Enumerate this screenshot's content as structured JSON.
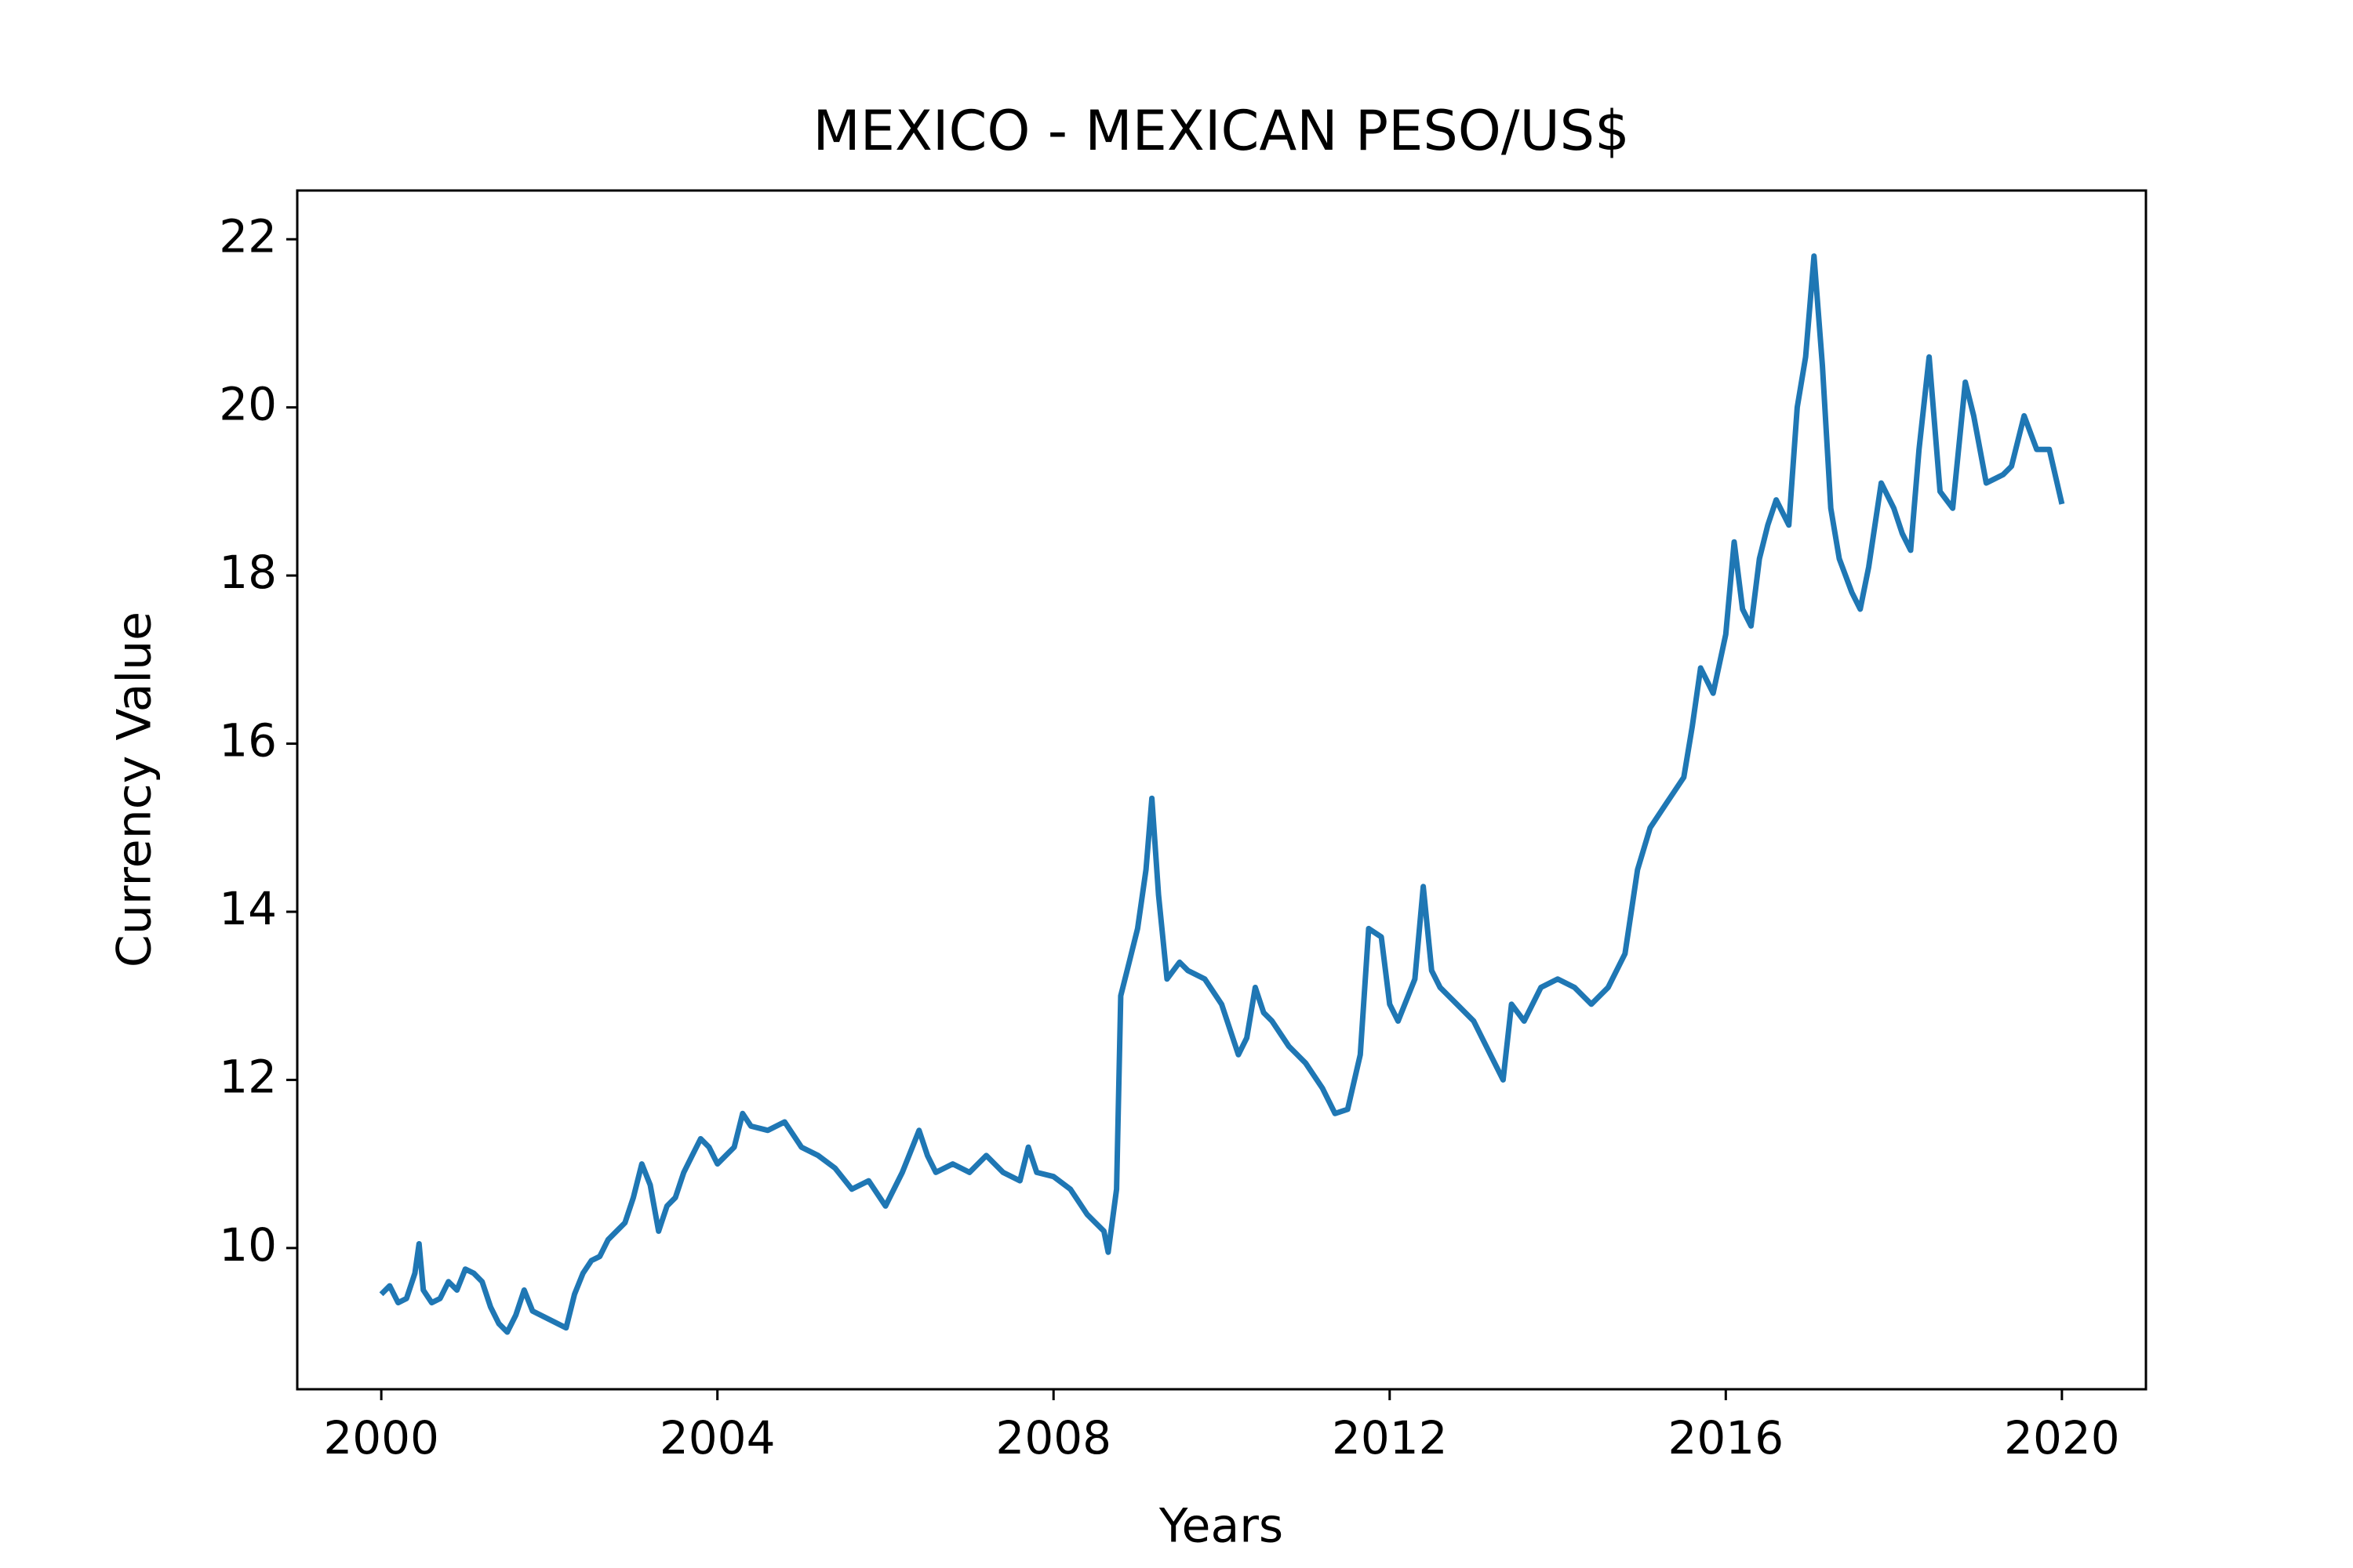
{
  "chart_data": {
    "type": "line",
    "title": "MEXICO - MEXICAN PESO/US$",
    "xlabel": "Years",
    "ylabel": "Currency Value",
    "x": [
      2000.0,
      2000.1,
      2000.2,
      2000.3,
      2000.4,
      2000.45,
      2000.5,
      2000.6,
      2000.7,
      2000.8,
      2000.9,
      2001.0,
      2001.1,
      2001.2,
      2001.3,
      2001.4,
      2001.5,
      2001.6,
      2001.7,
      2001.8,
      2001.9,
      2002.0,
      2002.1,
      2002.2,
      2002.3,
      2002.4,
      2002.5,
      2002.6,
      2002.7,
      2002.8,
      2002.9,
      2003.0,
      2003.1,
      2003.2,
      2003.3,
      2003.4,
      2003.5,
      2003.6,
      2003.7,
      2003.8,
      2003.9,
      2004.0,
      2004.1,
      2004.2,
      2004.3,
      2004.4,
      2004.6,
      2004.8,
      2005.0,
      2005.2,
      2005.4,
      2005.6,
      2005.8,
      2006.0,
      2006.2,
      2006.4,
      2006.5,
      2006.6,
      2006.8,
      2007.0,
      2007.2,
      2007.4,
      2007.6,
      2007.7,
      2007.8,
      2008.0,
      2008.2,
      2008.4,
      2008.6,
      2008.65,
      2008.75,
      2008.8,
      2008.9,
      2009.0,
      2009.1,
      2009.17,
      2009.25,
      2009.35,
      2009.5,
      2009.6,
      2009.8,
      2010.0,
      2010.2,
      2010.3,
      2010.4,
      2010.5,
      2010.6,
      2010.8,
      2011.0,
      2011.2,
      2011.35,
      2011.5,
      2011.65,
      2011.75,
      2011.9,
      2012.0,
      2012.1,
      2012.3,
      2012.4,
      2012.5,
      2012.6,
      2012.8,
      2013.0,
      2013.2,
      2013.35,
      2013.45,
      2013.6,
      2013.8,
      2014.0,
      2014.2,
      2014.4,
      2014.6,
      2014.8,
      2014.95,
      2015.1,
      2015.3,
      2015.5,
      2015.6,
      2015.7,
      2015.85,
      2016.0,
      2016.1,
      2016.2,
      2016.3,
      2016.4,
      2016.5,
      2016.6,
      2016.75,
      2016.85,
      2016.95,
      2017.05,
      2017.15,
      2017.25,
      2017.35,
      2017.5,
      2017.6,
      2017.7,
      2017.85,
      2018.0,
      2018.1,
      2018.2,
      2018.3,
      2018.42,
      2018.55,
      2018.7,
      2018.85,
      2018.95,
      2019.1,
      2019.3,
      2019.4,
      2019.55,
      2019.7,
      2019.85,
      2020.0
    ],
    "series": [
      {
        "name": "MEXICO - MEXICAN PESO/US$",
        "color": "#1f77b4",
        "values": [
          9.45,
          9.55,
          9.35,
          9.4,
          9.7,
          10.05,
          9.5,
          9.35,
          9.4,
          9.6,
          9.5,
          9.75,
          9.7,
          9.6,
          9.3,
          9.1,
          9.0,
          9.2,
          9.5,
          9.25,
          9.2,
          9.15,
          9.1,
          9.05,
          9.45,
          9.7,
          9.85,
          9.9,
          10.1,
          10.2,
          10.3,
          10.6,
          11.0,
          10.75,
          10.2,
          10.5,
          10.6,
          10.9,
          11.1,
          11.3,
          11.2,
          11.0,
          11.1,
          11.2,
          11.6,
          11.45,
          11.4,
          11.5,
          11.2,
          11.1,
          10.95,
          10.7,
          10.8,
          10.5,
          10.9,
          11.4,
          11.1,
          10.9,
          11.0,
          10.9,
          11.1,
          10.9,
          10.8,
          11.2,
          10.9,
          10.85,
          10.7,
          10.4,
          10.2,
          9.95,
          10.7,
          13.0,
          13.4,
          13.8,
          14.5,
          15.35,
          14.2,
          13.2,
          13.4,
          13.3,
          13.2,
          12.9,
          12.3,
          12.5,
          13.1,
          12.8,
          12.7,
          12.4,
          12.2,
          11.9,
          11.6,
          11.65,
          12.3,
          13.8,
          13.7,
          12.9,
          12.7,
          13.2,
          14.3,
          13.3,
          13.1,
          12.9,
          12.7,
          12.3,
          12.0,
          12.9,
          12.7,
          13.1,
          13.2,
          13.1,
          12.9,
          13.1,
          13.5,
          14.5,
          15.0,
          15.3,
          15.6,
          16.2,
          16.9,
          16.6,
          17.3,
          18.4,
          17.6,
          17.4,
          18.2,
          18.6,
          18.9,
          18.6,
          20.0,
          20.6,
          21.8,
          20.5,
          18.8,
          18.2,
          17.8,
          17.6,
          18.1,
          19.1,
          18.8,
          18.5,
          18.3,
          19.5,
          20.6,
          19.0,
          18.8,
          20.3,
          19.9,
          19.1,
          19.2,
          19.3,
          19.9,
          19.5,
          19.5,
          18.85
        ]
      }
    ],
    "xlim": [
      1999,
      2021
    ],
    "xticks": [
      2000,
      2004,
      2008,
      2012,
      2016,
      2020
    ],
    "ylim": [
      8.32,
      22.58
    ],
    "yticks": [
      10,
      12,
      14,
      16,
      18,
      20,
      22
    ]
  }
}
